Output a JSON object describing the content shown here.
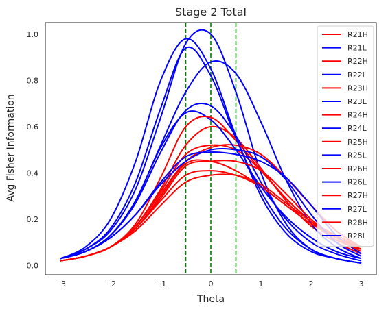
{
  "chart_data": {
    "type": "line",
    "title": "Stage 2 Total",
    "xlabel": "Theta",
    "ylabel": "Avg Fisher Information",
    "xlim": [
      -3.3,
      3.3
    ],
    "ylim": [
      -0.04,
      1.05
    ],
    "xticks": [
      -3,
      -2,
      -1,
      0,
      1,
      2,
      3
    ],
    "yticks": [
      0.0,
      0.2,
      0.4,
      0.6,
      0.8,
      1.0
    ],
    "xtick_labels": [
      "−3",
      "−2",
      "−1",
      "0",
      "1",
      "2",
      "3"
    ],
    "ytick_labels": [
      "0.0",
      "0.2",
      "0.4",
      "0.6",
      "0.8",
      "1.0"
    ],
    "grid": false,
    "legend_position": "top-right",
    "vlines": {
      "x": [
        -0.5,
        0,
        0.5
      ],
      "color": "#008000",
      "style": "dashed"
    },
    "colors": {
      "H": "#ff0000",
      "L": "#0000ff"
    },
    "x": [
      -3,
      -2.5,
      -2,
      -1.5,
      -1,
      -0.5,
      0,
      0.5,
      1,
      1.5,
      2,
      2.5,
      3
    ],
    "series": [
      {
        "name": "R21H",
        "color": "#ff0000",
        "values": [
          0.02,
          0.04,
          0.08,
          0.17,
          0.32,
          0.48,
          0.52,
          0.5,
          0.41,
          0.29,
          0.19,
          0.11,
          0.07
        ]
      },
      {
        "name": "R21L",
        "color": "#0000ff",
        "values": [
          0.03,
          0.07,
          0.15,
          0.33,
          0.64,
          0.96,
          1.0,
          0.75,
          0.4,
          0.18,
          0.07,
          0.03,
          0.01
        ]
      },
      {
        "name": "R22H",
        "color": "#ff0000",
        "values": [
          0.02,
          0.04,
          0.08,
          0.17,
          0.33,
          0.52,
          0.6,
          0.55,
          0.42,
          0.28,
          0.17,
          0.1,
          0.05
        ]
      },
      {
        "name": "R22L",
        "color": "#0000ff",
        "values": [
          0.03,
          0.08,
          0.2,
          0.45,
          0.8,
          0.98,
          0.85,
          0.56,
          0.3,
          0.14,
          0.06,
          0.03,
          0.01
        ]
      },
      {
        "name": "R23H",
        "color": "#ff0000",
        "values": [
          0.02,
          0.04,
          0.08,
          0.16,
          0.28,
          0.39,
          0.41,
          0.39,
          0.34,
          0.26,
          0.18,
          0.12,
          0.07
        ]
      },
      {
        "name": "R23L",
        "color": "#0000ff",
        "values": [
          0.03,
          0.06,
          0.13,
          0.27,
          0.49,
          0.67,
          0.69,
          0.56,
          0.36,
          0.2,
          0.1,
          0.05,
          0.02
        ]
      },
      {
        "name": "R24H",
        "color": "#ff0000",
        "values": [
          0.02,
          0.04,
          0.08,
          0.17,
          0.31,
          0.45,
          0.51,
          0.52,
          0.48,
          0.38,
          0.26,
          0.15,
          0.08
        ]
      },
      {
        "name": "R24L",
        "color": "#0000ff",
        "values": [
          0.03,
          0.06,
          0.13,
          0.28,
          0.52,
          0.75,
          0.88,
          0.83,
          0.62,
          0.37,
          0.18,
          0.08,
          0.03
        ]
      },
      {
        "name": "R25H",
        "color": "#ff0000",
        "values": [
          0.02,
          0.04,
          0.08,
          0.16,
          0.3,
          0.44,
          0.45,
          0.41,
          0.34,
          0.26,
          0.18,
          0.12,
          0.08
        ]
      },
      {
        "name": "R25L",
        "color": "#0000ff",
        "values": [
          0.03,
          0.06,
          0.13,
          0.28,
          0.51,
          0.66,
          0.63,
          0.5,
          0.34,
          0.21,
          0.12,
          0.06,
          0.03
        ]
      },
      {
        "name": "R26H",
        "color": "#ff0000",
        "values": [
          0.02,
          0.04,
          0.08,
          0.18,
          0.38,
          0.6,
          0.64,
          0.54,
          0.41,
          0.29,
          0.19,
          0.12,
          0.07
        ]
      },
      {
        "name": "R26L",
        "color": "#0000ff",
        "values": [
          0.03,
          0.06,
          0.12,
          0.22,
          0.36,
          0.47,
          0.49,
          0.48,
          0.45,
          0.38,
          0.26,
          0.13,
          0.05
        ]
      },
      {
        "name": "R27H",
        "color": "#ff0000",
        "values": [
          0.02,
          0.04,
          0.08,
          0.15,
          0.26,
          0.36,
          0.39,
          0.39,
          0.35,
          0.27,
          0.19,
          0.13,
          0.08
        ]
      },
      {
        "name": "R27L",
        "color": "#0000ff",
        "values": [
          0.03,
          0.07,
          0.16,
          0.36,
          0.68,
          0.94,
          0.82,
          0.55,
          0.32,
          0.16,
          0.07,
          0.03,
          0.01
        ]
      },
      {
        "name": "R28H",
        "color": "#ff0000",
        "values": [
          0.02,
          0.04,
          0.08,
          0.16,
          0.29,
          0.43,
          0.45,
          0.45,
          0.41,
          0.31,
          0.2,
          0.12,
          0.06
        ]
      },
      {
        "name": "R28L",
        "color": "#0000ff",
        "values": [
          0.03,
          0.06,
          0.12,
          0.22,
          0.35,
          0.45,
          0.5,
          0.5,
          0.47,
          0.37,
          0.22,
          0.1,
          0.04
        ]
      }
    ]
  }
}
